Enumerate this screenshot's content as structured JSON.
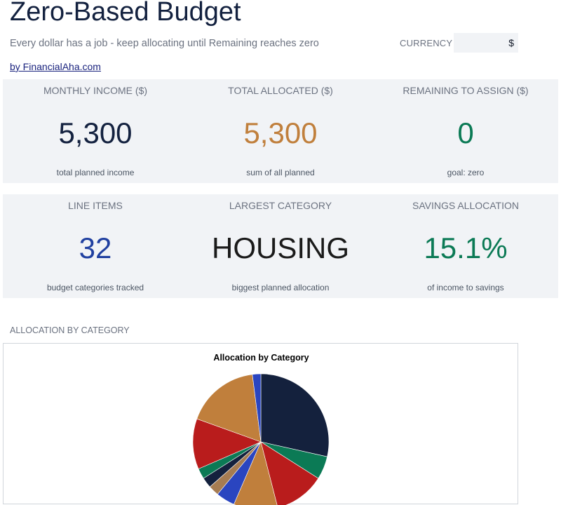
{
  "header": {
    "title": "Zero-Based Budget",
    "subtitle": "Every dollar has a job - keep allocating until Remaining reaches zero",
    "byline": "by FinancialAha.com",
    "currency_label": "CURRENCY",
    "currency_value": "$"
  },
  "kpis_row1": [
    {
      "label": "MONTHLY INCOME ($)",
      "value": "5,300",
      "sub": "total planned income",
      "color": "#13213f"
    },
    {
      "label": "TOTAL ALLOCATED ($)",
      "value": "5,300",
      "sub": "sum of all planned",
      "color": "#c07f3c"
    },
    {
      "label": "REMAINING TO ASSIGN ($)",
      "value": "0",
      "sub": "goal: zero",
      "color": "#0b7a55"
    }
  ],
  "kpis_row2": [
    {
      "label": "LINE ITEMS",
      "value": "32",
      "sub": "budget categories tracked",
      "color": "#2040a0"
    },
    {
      "label": "LARGEST CATEGORY",
      "value": "HOUSING",
      "sub": "biggest planned allocation",
      "color": "#1a1a1a"
    },
    {
      "label": "SAVINGS ALLOCATION",
      "value": "15.1%",
      "sub": "of income to savings",
      "color": "#0b7a55"
    }
  ],
  "section": {
    "allocation_label": "ALLOCATION BY CATEGORY"
  },
  "chart_data": {
    "type": "pie",
    "title": "Allocation by Category",
    "slices": [
      {
        "value": 28.5,
        "color": "#14213d"
      },
      {
        "value": 5.5,
        "color": "#0b7a55"
      },
      {
        "value": 12.0,
        "color": "#b91c1c"
      },
      {
        "value": 10.5,
        "color": "#c07f3c"
      },
      {
        "value": 4.5,
        "color": "#2a45c0"
      },
      {
        "value": 2.5,
        "color": "#a67c52"
      },
      {
        "value": 2.5,
        "color": "#14213d"
      },
      {
        "value": 2.5,
        "color": "#0b7a55"
      },
      {
        "value": 12.0,
        "color": "#b91c1c"
      },
      {
        "value": 17.5,
        "color": "#c07f3c"
      },
      {
        "value": 2.0,
        "color": "#2a45c0"
      }
    ]
  }
}
